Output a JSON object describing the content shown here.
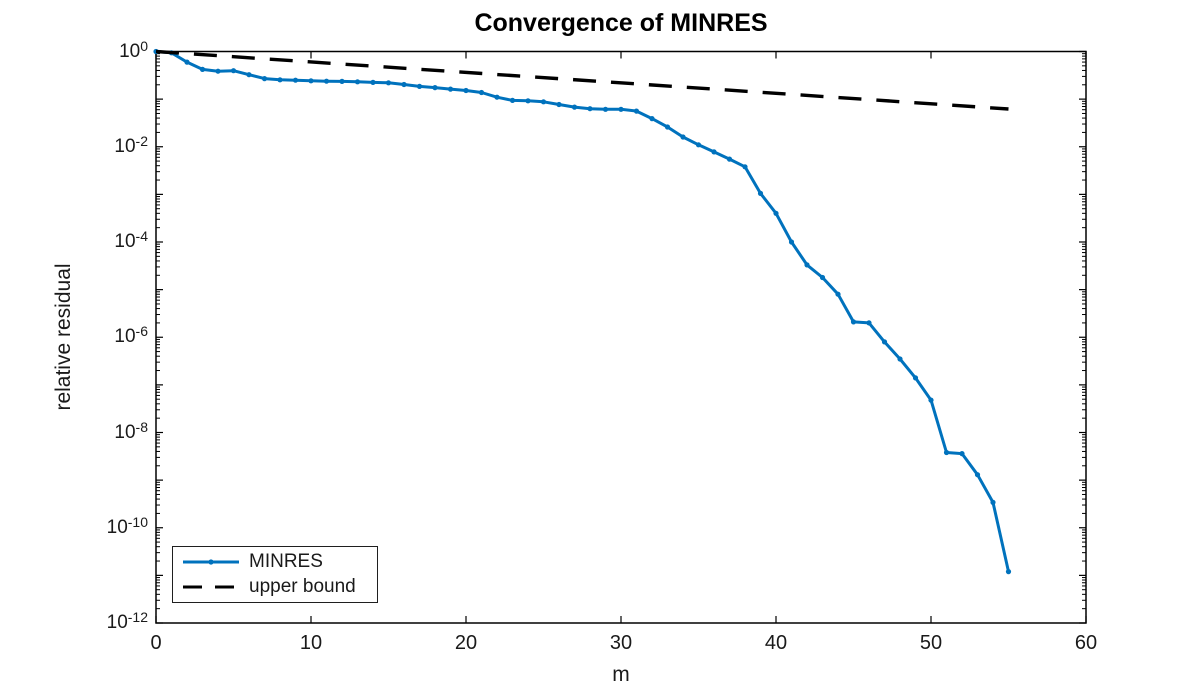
{
  "chart_data": {
    "type": "line",
    "title": "Convergence of MINRES",
    "xlabel": "m",
    "ylabel": "relative residual",
    "x_axis": {
      "min": 0,
      "max": 60,
      "ticks": [
        0,
        10,
        20,
        30,
        40,
        50,
        60
      ]
    },
    "y_axis": {
      "scale": "log10",
      "min_exponent": -12,
      "max_exponent": 0,
      "tick_exponents": [
        0,
        -2,
        -4,
        -6,
        -8,
        -10,
        -12
      ],
      "tick_base": "10"
    },
    "grid": false,
    "legend_position": "southwest",
    "series": [
      {
        "name": "MINRES",
        "color": "#0072BD",
        "line_style": "solid",
        "marker": "dot",
        "x": [
          0,
          1,
          2,
          3,
          4,
          5,
          6,
          7,
          8,
          9,
          10,
          11,
          12,
          13,
          14,
          15,
          16,
          17,
          18,
          19,
          20,
          21,
          22,
          23,
          24,
          25,
          26,
          27,
          28,
          29,
          30,
          31,
          32,
          33,
          34,
          35,
          36,
          37,
          38,
          39,
          40,
          41,
          42,
          43,
          44,
          45,
          46,
          47,
          48,
          49,
          50,
          51,
          52,
          53,
          54,
          55
        ],
        "y": [
          1.0,
          0.94,
          0.6,
          0.42,
          0.385,
          0.395,
          0.325,
          0.27,
          0.255,
          0.25,
          0.243,
          0.238,
          0.236,
          0.231,
          0.224,
          0.22,
          0.203,
          0.185,
          0.175,
          0.162,
          0.152,
          0.138,
          0.11,
          0.094,
          0.092,
          0.088,
          0.077,
          0.068,
          0.063,
          0.061,
          0.061,
          0.056,
          0.039,
          0.026,
          0.016,
          0.011,
          0.0078,
          0.0055,
          0.0038,
          0.00105,
          0.0004,
          0.0001,
          3.3e-05,
          1.8e-05,
          8e-06,
          2.1e-06,
          2e-06,
          8e-07,
          3.5e-07,
          1.4e-07,
          4.8e-08,
          3.8e-09,
          3.6e-09,
          1.3e-09,
          3.4e-10,
          1.2e-11
        ]
      },
      {
        "name": "upper bound",
        "color": "#000000",
        "line_style": "dashed",
        "marker": "none",
        "x": [
          0,
          55
        ],
        "y": [
          1.0,
          0.062
        ]
      }
    ]
  },
  "legend": {
    "items": [
      {
        "label": "MINRES"
      },
      {
        "label": "upper bound"
      }
    ]
  },
  "colors": {
    "minres_blue": "#0072BD",
    "upper_bound_black": "#000000",
    "axis": "#000000",
    "text": "#1a1a1a",
    "background": "#ffffff"
  }
}
